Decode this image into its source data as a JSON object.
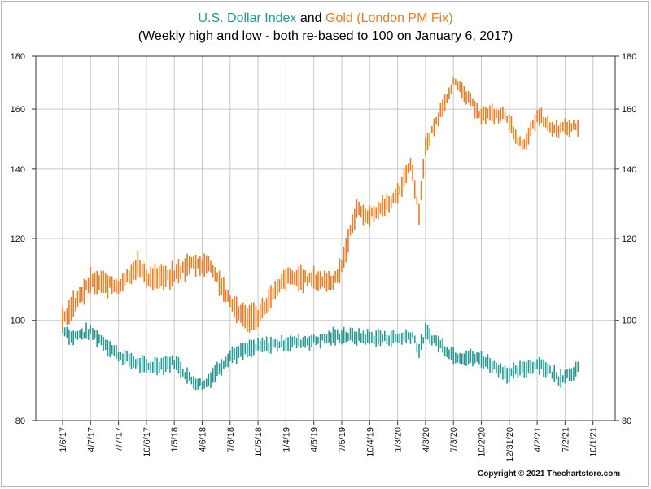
{
  "title": {
    "series1": "U.S. Dollar Index",
    "and": "and",
    "series2": "Gold (London PM Fix)",
    "subtitle": "(Weekly high and low - both re-based to 100 on January 6, 2017)"
  },
  "copyright": "Copyright © 2021 Thechartstore.com",
  "colors": {
    "usd": "#1f9a93",
    "gold": "#f07b1d",
    "grid": "#c8c8c8",
    "axis": "#333333"
  },
  "chart_data": {
    "type": "line",
    "scale": "log",
    "ylim": [
      80,
      180
    ],
    "y_ticks": [
      80,
      100,
      120,
      140,
      160,
      180
    ],
    "x_tick_labels": [
      "1/6/17",
      "4/7/17",
      "7/7/17",
      "10/6/17",
      "1/5/18",
      "4/6/18",
      "7/6/18",
      "10/5/18",
      "1/4/19",
      "4/5/19",
      "7/5/19",
      "10/4/19",
      "1/3/20",
      "4/3/20",
      "7/3/20",
      "10/2/20",
      "12/31/20",
      "4/2/21",
      "7/2/21",
      "10/1/21"
    ],
    "grid": true,
    "series": [
      {
        "name": "U.S. Dollar Index",
        "color": "#1f9a93",
        "anchors": [
          [
            0,
            98.5
          ],
          [
            4,
            96.3
          ],
          [
            13,
            97.5
          ],
          [
            26,
            92.6
          ],
          [
            39,
            90.1
          ],
          [
            52,
            91.2
          ],
          [
            60,
            87.5
          ],
          [
            66,
            86.6
          ],
          [
            78,
            92.5
          ],
          [
            91,
            94.3
          ],
          [
            104,
            95.1
          ],
          [
            117,
            95.6
          ],
          [
            130,
            96.7
          ],
          [
            143,
            96.2
          ],
          [
            156,
            96.1
          ],
          [
            163,
            96.8
          ],
          [
            166,
            93.5
          ],
          [
            169,
            97.3
          ],
          [
            182,
            92.5
          ],
          [
            195,
            91.7
          ],
          [
            208,
            88.7
          ],
          [
            222,
            90.9
          ],
          [
            231,
            87.9
          ],
          [
            240,
            89.7
          ]
        ],
        "ranges": [
          0.7,
          1.8
        ]
      },
      {
        "name": "Gold (London PM Fix)",
        "color": "#f07b1d",
        "anchors": [
          [
            0,
            100
          ],
          [
            4,
            102.5
          ],
          [
            13,
            109
          ],
          [
            26,
            108
          ],
          [
            35,
            113
          ],
          [
            39,
            110
          ],
          [
            50,
            110
          ],
          [
            60,
            113.5
          ],
          [
            69,
            113
          ],
          [
            78,
            104
          ],
          [
            85,
            100.5
          ],
          [
            91,
            101
          ],
          [
            104,
            110
          ],
          [
            117,
            109.5
          ],
          [
            126,
            109
          ],
          [
            130,
            113
          ],
          [
            137,
            128
          ],
          [
            143,
            126
          ],
          [
            156,
            132
          ],
          [
            162,
            142
          ],
          [
            166,
            127
          ],
          [
            169,
            146.5
          ],
          [
            182,
            170
          ],
          [
            195,
            158
          ],
          [
            206,
            158
          ],
          [
            214,
            147
          ],
          [
            222,
            158
          ],
          [
            228,
            152.5
          ],
          [
            240,
            154
          ]
        ],
        "ranges": [
          1.2,
          3.2
        ]
      }
    ]
  }
}
